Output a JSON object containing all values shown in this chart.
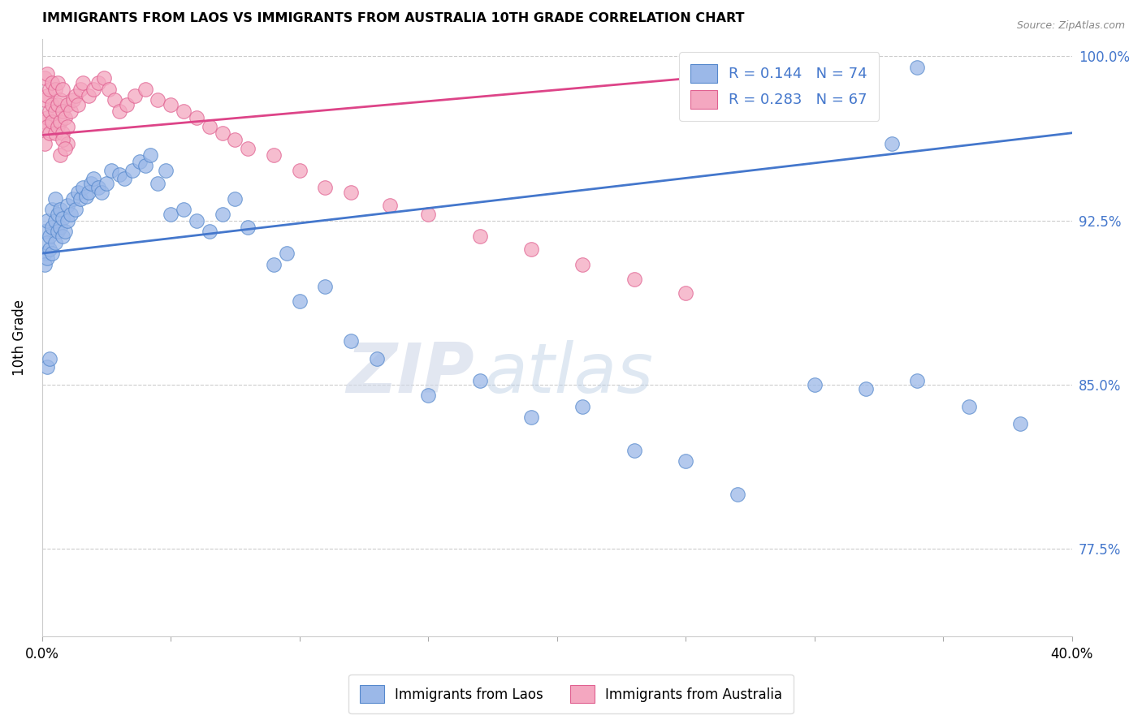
{
  "title": "IMMIGRANTS FROM LAOS VS IMMIGRANTS FROM AUSTRALIA 10TH GRADE CORRELATION CHART",
  "source": "Source: ZipAtlas.com",
  "ylabel": "10th Grade",
  "watermark_zip": "ZIP",
  "watermark_atlas": "atlas",
  "blue_label": "Immigrants from Laos",
  "pink_label": "Immigrants from Australia",
  "blue_R": 0.144,
  "blue_N": 74,
  "pink_R": 0.283,
  "pink_N": 67,
  "blue_color": "#9bb8e8",
  "pink_color": "#f4a7c0",
  "blue_edge_color": "#5588cc",
  "pink_edge_color": "#e06090",
  "blue_line_color": "#4477cc",
  "pink_line_color": "#dd4488",
  "xlim": [
    0.0,
    0.4
  ],
  "ylim": [
    0.735,
    1.008
  ],
  "yticks": [
    0.775,
    0.85,
    0.925,
    1.0
  ],
  "ytick_labels": [
    "77.5%",
    "85.0%",
    "92.5%",
    "100.0%"
  ],
  "xticks": [
    0.0,
    0.05,
    0.1,
    0.15,
    0.2,
    0.25,
    0.3,
    0.35,
    0.4
  ],
  "xtick_labels": [
    "0.0%",
    "",
    "",
    "",
    "",
    "",
    "",
    "",
    "40.0%"
  ],
  "blue_trend_x": [
    0.0,
    0.4
  ],
  "blue_trend_y": [
    0.91,
    0.965
  ],
  "pink_trend_x": [
    0.0,
    0.3
  ],
  "pink_trend_y": [
    0.964,
    0.995
  ],
  "blue_scatter_x": [
    0.001,
    0.001,
    0.001,
    0.002,
    0.002,
    0.002,
    0.003,
    0.003,
    0.004,
    0.004,
    0.004,
    0.005,
    0.005,
    0.005,
    0.006,
    0.006,
    0.007,
    0.007,
    0.008,
    0.008,
    0.009,
    0.01,
    0.01,
    0.011,
    0.012,
    0.013,
    0.014,
    0.015,
    0.016,
    0.017,
    0.018,
    0.019,
    0.02,
    0.022,
    0.023,
    0.025,
    0.027,
    0.03,
    0.032,
    0.035,
    0.038,
    0.04,
    0.042,
    0.045,
    0.048,
    0.05,
    0.055,
    0.06,
    0.065,
    0.07,
    0.075,
    0.08,
    0.09,
    0.095,
    0.1,
    0.11,
    0.12,
    0.13,
    0.15,
    0.17,
    0.19,
    0.21,
    0.23,
    0.25,
    0.27,
    0.3,
    0.32,
    0.34,
    0.36,
    0.38,
    0.002,
    0.003,
    0.33,
    0.34
  ],
  "blue_scatter_y": [
    0.91,
    0.92,
    0.905,
    0.915,
    0.908,
    0.925,
    0.912,
    0.918,
    0.91,
    0.922,
    0.93,
    0.915,
    0.925,
    0.935,
    0.92,
    0.928,
    0.922,
    0.93,
    0.918,
    0.926,
    0.92,
    0.925,
    0.932,
    0.928,
    0.935,
    0.93,
    0.938,
    0.935,
    0.94,
    0.936,
    0.938,
    0.942,
    0.944,
    0.94,
    0.938,
    0.942,
    0.948,
    0.946,
    0.944,
    0.948,
    0.952,
    0.95,
    0.955,
    0.942,
    0.948,
    0.928,
    0.93,
    0.925,
    0.92,
    0.928,
    0.935,
    0.922,
    0.905,
    0.91,
    0.888,
    0.895,
    0.87,
    0.862,
    0.845,
    0.852,
    0.835,
    0.84,
    0.82,
    0.815,
    0.8,
    0.85,
    0.848,
    0.852,
    0.84,
    0.832,
    0.858,
    0.862,
    0.96,
    0.995
  ],
  "pink_scatter_x": [
    0.001,
    0.001,
    0.001,
    0.001,
    0.002,
    0.002,
    0.002,
    0.002,
    0.003,
    0.003,
    0.003,
    0.004,
    0.004,
    0.004,
    0.005,
    0.005,
    0.005,
    0.006,
    0.006,
    0.006,
    0.007,
    0.007,
    0.008,
    0.008,
    0.008,
    0.009,
    0.01,
    0.01,
    0.011,
    0.012,
    0.013,
    0.014,
    0.015,
    0.016,
    0.018,
    0.02,
    0.022,
    0.024,
    0.026,
    0.028,
    0.03,
    0.033,
    0.036,
    0.04,
    0.045,
    0.05,
    0.055,
    0.06,
    0.065,
    0.07,
    0.075,
    0.08,
    0.09,
    0.1,
    0.11,
    0.12,
    0.135,
    0.15,
    0.17,
    0.19,
    0.21,
    0.23,
    0.25,
    0.01,
    0.007,
    0.008,
    0.009
  ],
  "pink_scatter_y": [
    0.98,
    0.97,
    0.96,
    0.99,
    0.972,
    0.982,
    0.968,
    0.992,
    0.975,
    0.965,
    0.985,
    0.97,
    0.978,
    0.988,
    0.965,
    0.975,
    0.985,
    0.968,
    0.978,
    0.988,
    0.97,
    0.98,
    0.965,
    0.975,
    0.985,
    0.972,
    0.968,
    0.978,
    0.975,
    0.98,
    0.982,
    0.978,
    0.985,
    0.988,
    0.982,
    0.985,
    0.988,
    0.99,
    0.985,
    0.98,
    0.975,
    0.978,
    0.982,
    0.985,
    0.98,
    0.978,
    0.975,
    0.972,
    0.968,
    0.965,
    0.962,
    0.958,
    0.955,
    0.948,
    0.94,
    0.938,
    0.932,
    0.928,
    0.918,
    0.912,
    0.905,
    0.898,
    0.892,
    0.96,
    0.955,
    0.962,
    0.958
  ]
}
